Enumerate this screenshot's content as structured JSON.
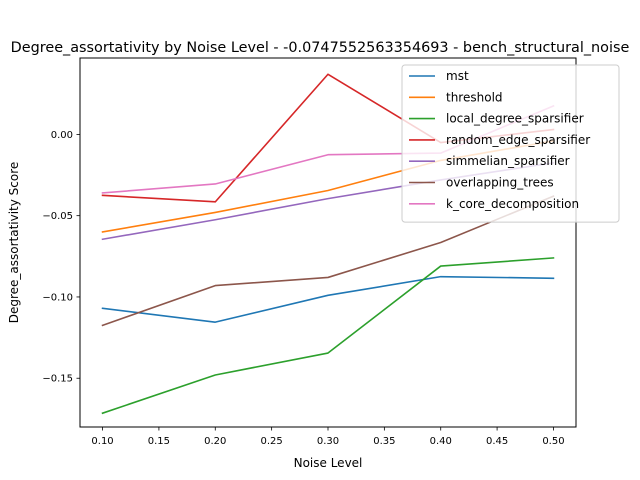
{
  "chart_data": {
    "type": "line",
    "title": "Degree_assortativity by Noise Level - -0.0747552563354693 - bench_structural_noise",
    "xlabel": "Noise Level",
    "ylabel": "Degree_assortativity Score",
    "x": [
      0.1,
      0.2,
      0.3,
      0.4,
      0.5
    ],
    "xlim": [
      0.08,
      0.52
    ],
    "ylim": [
      -0.18,
      0.047
    ],
    "xticks": [
      "0.10",
      "0.15",
      "0.20",
      "0.25",
      "0.30",
      "0.35",
      "0.40",
      "0.45",
      "0.50"
    ],
    "xtick_values": [
      0.1,
      0.15,
      0.2,
      0.25,
      0.3,
      0.35,
      0.4,
      0.45,
      0.5
    ],
    "yticks": [
      "−0.15",
      "−0.10",
      "−0.05",
      "0.00"
    ],
    "ytick_values": [
      -0.15,
      -0.1,
      -0.05,
      0.0
    ],
    "grid": false,
    "legend_position": "top-right",
    "series": [
      {
        "name": "mst",
        "color": "#1f77b4",
        "values": [
          -0.107,
          -0.1155,
          -0.099,
          -0.0875,
          -0.0885
        ]
      },
      {
        "name": "threshold",
        "color": "#ff7f0e",
        "values": [
          -0.06,
          -0.048,
          -0.0345,
          -0.016,
          -0.004
        ]
      },
      {
        "name": "local_degree_sparsifier",
        "color": "#2ca02c",
        "values": [
          -0.1715,
          -0.148,
          -0.1345,
          -0.081,
          -0.076
        ]
      },
      {
        "name": "random_edge_sparsifier",
        "color": "#d62728",
        "values": [
          -0.0375,
          -0.0415,
          0.037,
          -0.005,
          0.003
        ]
      },
      {
        "name": "simmelian_sparsifier",
        "color": "#9467bd",
        "values": [
          -0.0645,
          -0.0525,
          -0.0395,
          -0.028,
          -0.0175
        ]
      },
      {
        "name": "overlapping_trees",
        "color": "#8c564b",
        "values": [
          -0.1175,
          -0.093,
          -0.088,
          -0.0665,
          -0.038
        ]
      },
      {
        "name": "k_core_decomposition",
        "color": "#e377c2",
        "values": [
          -0.036,
          -0.0305,
          -0.0125,
          -0.0115,
          0.0175
        ]
      }
    ]
  }
}
